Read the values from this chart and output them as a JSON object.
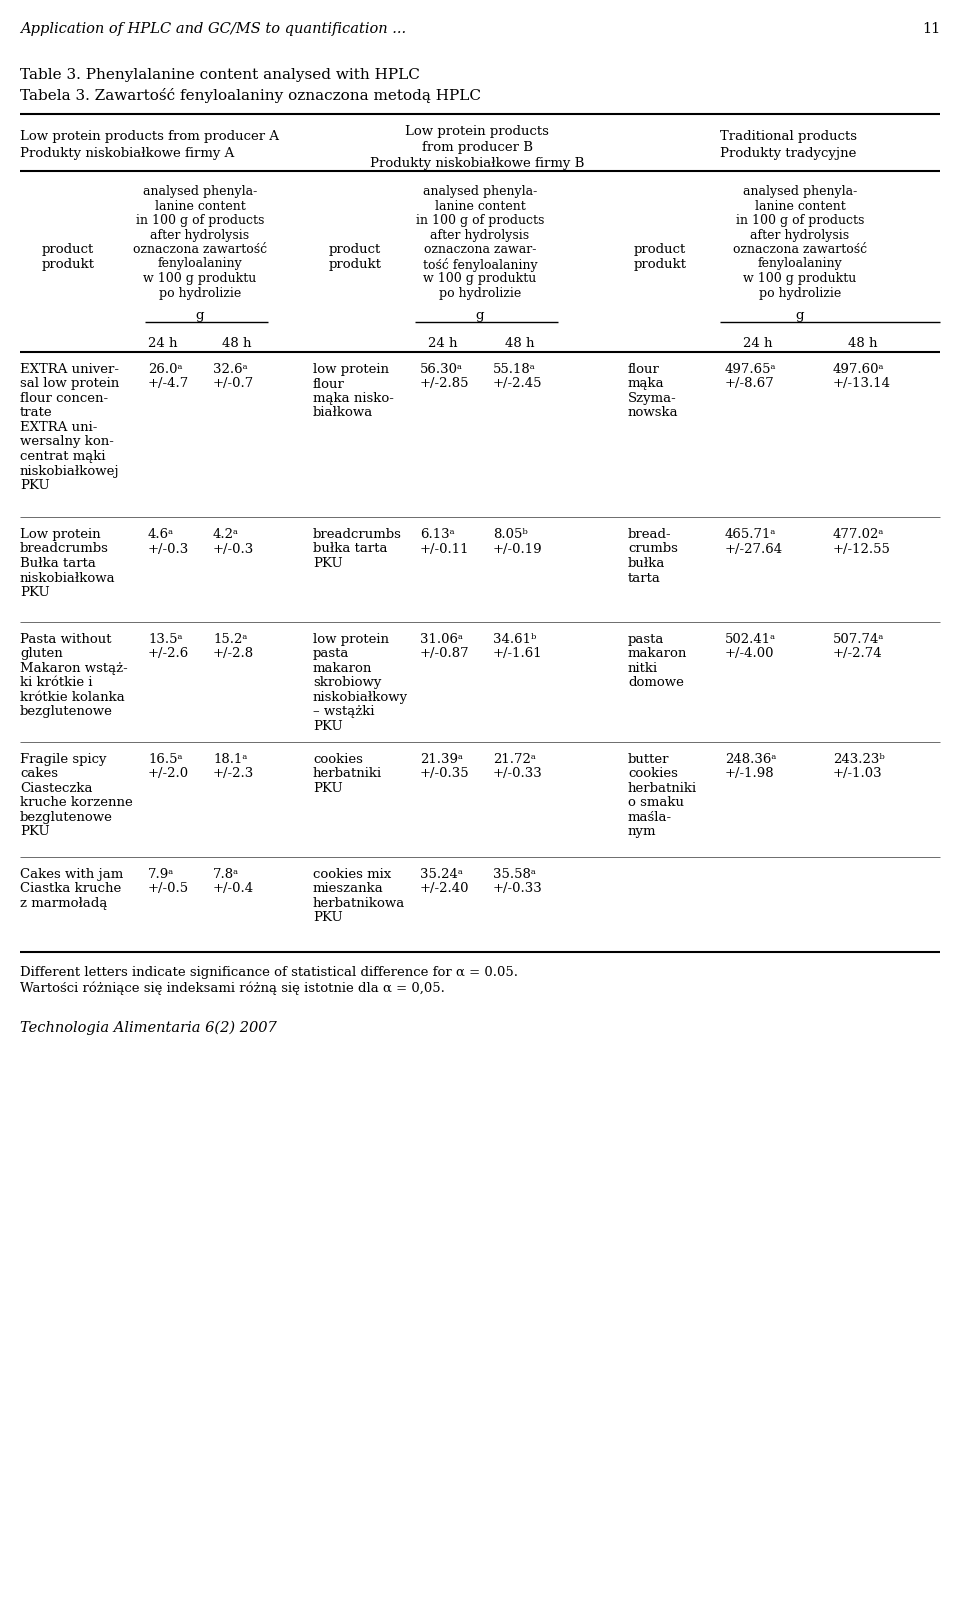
{
  "page_header": "Application of HPLC and GC/MS to quantification ...",
  "page_number": "11",
  "table_title_en": "Table 3. Phenylalanine content analysed with HPLC",
  "table_title_pl": "Tabela 3. Zawartość fenyloalaniny oznaczona metodą HPLC",
  "rows": [
    {
      "product_A": [
        "EXTRA univer-",
        "sal low protein",
        "flour concen-",
        "trate",
        "EXTRA uni-",
        "wersalny kon-",
        "centrat mąki",
        "niskobiałkowej",
        "PKU"
      ],
      "val_A_24": "26.0ᵃ",
      "val_A_24_sd": "+/-4.7",
      "val_A_48": "32.6ᵃ",
      "val_A_48_sd": "+/-0.7",
      "product_B": [
        "low protein",
        "flour",
        "mąka nisko-",
        "białkowa"
      ],
      "val_B_24": "56.30ᵃ",
      "val_B_24_sd": "+/-2.85",
      "val_B_48": "55.18ᵃ",
      "val_B_48_sd": "+/-2.45",
      "product_C": [
        "flour",
        "mąka",
        "Szyma-",
        "nowska"
      ],
      "val_C_24": "497.65ᵃ",
      "val_C_24_sd": "+/-8.67",
      "val_C_48": "497.60ᵃ",
      "val_C_48_sd": "+/-13.14"
    },
    {
      "product_A": [
        "Low protein",
        "breadcrumbs",
        "Bułka tarta",
        "niskobiałkowa",
        "PKU"
      ],
      "val_A_24": "4.6ᵃ",
      "val_A_24_sd": "+/-0.3",
      "val_A_48": "4.2ᵃ",
      "val_A_48_sd": "+/-0.3",
      "product_B": [
        "breadcrumbs",
        "bułka tarta",
        "PKU"
      ],
      "val_B_24": "6.13ᵃ",
      "val_B_24_sd": "+/-0.11",
      "val_B_48": "8.05ᵇ",
      "val_B_48_sd": "+/-0.19",
      "product_C": [
        "bread-",
        "crumbs",
        "bułka",
        "tarta"
      ],
      "val_C_24": "465.71ᵃ",
      "val_C_24_sd": "+/-27.64",
      "val_C_48": "477.02ᵃ",
      "val_C_48_sd": "+/-12.55"
    },
    {
      "product_A": [
        "Pasta without",
        "gluten",
        "Makaron wstąż-",
        "ki krótkie i",
        "krótkie kolanka",
        "bezglutenowe"
      ],
      "val_A_24": "13.5ᵃ",
      "val_A_24_sd": "+/-2.6",
      "val_A_48": "15.2ᵃ",
      "val_A_48_sd": "+/-2.8",
      "product_B": [
        "low protein",
        "pasta",
        "makaron",
        "skrobiowy",
        "niskobiałkowy",
        "– wstążki",
        "PKU"
      ],
      "val_B_24": "31.06ᵃ",
      "val_B_24_sd": "+/-0.87",
      "val_B_48": "34.61ᵇ",
      "val_B_48_sd": "+/-1.61",
      "product_C": [
        "pasta",
        "makaron",
        "nitki",
        "domowe"
      ],
      "val_C_24": "502.41ᵃ",
      "val_C_24_sd": "+/-4.00",
      "val_C_48": "507.74ᵃ",
      "val_C_48_sd": "+/-2.74"
    },
    {
      "product_A": [
        "Fragile spicy",
        "cakes",
        "Ciasteczka",
        "kruche korzenne",
        "bezglutenowe",
        "PKU"
      ],
      "val_A_24": "16.5ᵃ",
      "val_A_24_sd": "+/-2.0",
      "val_A_48": "18.1ᵃ",
      "val_A_48_sd": "+/-2.3",
      "product_B": [
        "cookies",
        "herbatniki",
        "PKU"
      ],
      "val_B_24": "21.39ᵃ",
      "val_B_24_sd": "+/-0.35",
      "val_B_48": "21.72ᵃ",
      "val_B_48_sd": "+/-0.33",
      "product_C": [
        "butter",
        "cookies",
        "herbatniki",
        "o smaku",
        "maśla-",
        "nym"
      ],
      "val_C_24": "248.36ᵃ",
      "val_C_24_sd": "+/-1.98",
      "val_C_48": "243.23ᵇ",
      "val_C_48_sd": "+/-1.03"
    },
    {
      "product_A": [
        "Cakes with jam",
        "Ciastka kruche",
        "z marmoładą"
      ],
      "val_A_24": "7.9ᵃ",
      "val_A_24_sd": "+/-0.5",
      "val_A_48": "7.8ᵃ",
      "val_A_48_sd": "+/-0.4",
      "product_B": [
        "cookies mix",
        "mieszanka",
        "herbatnikowa",
        "PKU"
      ],
      "val_B_24": "35.24ᵃ",
      "val_B_24_sd": "+/-2.40",
      "val_B_48": "35.58ᵃ",
      "val_B_48_sd": "+/-0.33",
      "product_C": [],
      "val_C_24": "",
      "val_C_24_sd": "",
      "val_C_48": "",
      "val_C_48_sd": ""
    }
  ],
  "footnote_en": "Different letters indicate significance of statistical difference for α = 0.05.",
  "footnote_pl": "Wartości różniące się indeksami różną się istotnie dla α = 0,05.",
  "footer_text": "Technologia Alimentaria 6(2) 2007",
  "sh_A": [
    "analysed phenyla-",
    "lanine content",
    "in 100 g of products",
    "after hydrolysis",
    "oznaczona zawartość",
    "fenyloalaniny",
    "w 100 g produktu",
    "po hydrolizie"
  ],
  "sh_B": [
    "analysed phenyla-",
    "lanine content",
    "in 100 g of products",
    "after hydrolysis",
    "oznaczona zawar-",
    "tość fenyloalaniny",
    "w 100 g produktu",
    "po hydrolizie"
  ],
  "sh_C": [
    "analysed phenyla-",
    "lanine content",
    "in 100 g of products",
    "after hydrolysis",
    "oznaczona zawartość",
    "fenyloalaniny",
    "w 100 g produktu",
    "po hydrolizie"
  ]
}
